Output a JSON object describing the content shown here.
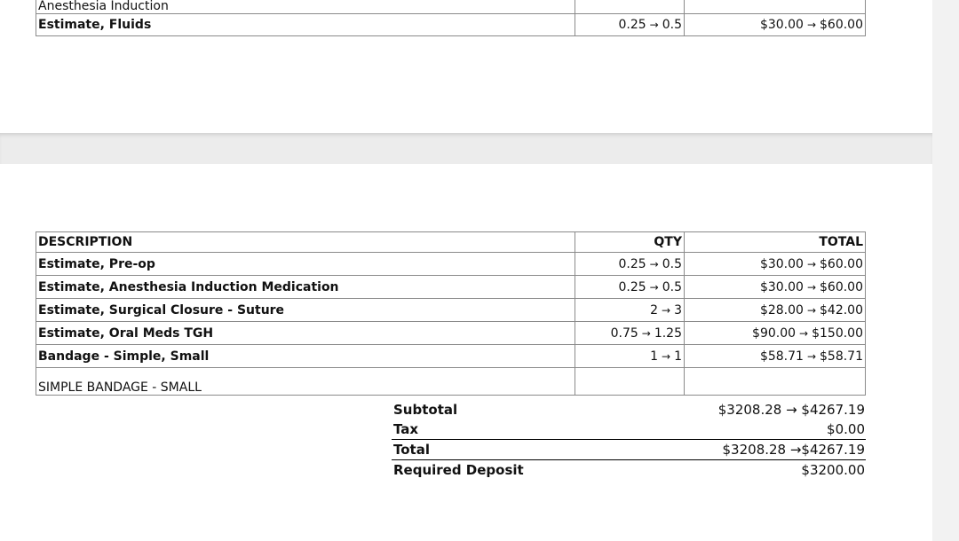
{
  "top_section": {
    "sub_line": "Anesthesia Induction",
    "row": {
      "description": "Estimate, Fluids",
      "qty_from": "0.25",
      "qty_to": "0.5",
      "total_from": "$30.00",
      "total_to": "$60.00"
    }
  },
  "table": {
    "headers": {
      "description": "DESCRIPTION",
      "qty": "QTY",
      "total": "TOTAL"
    },
    "rows": [
      {
        "description": "Estimate, Pre-op",
        "qty_from": "0.25",
        "qty_to": "0.5",
        "total_from": "$30.00",
        "total_to": "$60.00"
      },
      {
        "description": "Estimate, Anesthesia Induction Medication",
        "qty_from": "0.25",
        "qty_to": "0.5",
        "total_from": "$30.00",
        "total_to": "$60.00"
      },
      {
        "description": "Estimate, Surgical Closure - Suture",
        "qty_from": "2",
        "qty_to": "3",
        "total_from": "$28.00",
        "total_to": "$42.00"
      },
      {
        "description": "Estimate, Oral Meds TGH",
        "qty_from": "0.75",
        "qty_to": "1.25",
        "total_from": "$90.00",
        "total_to": "$150.00"
      },
      {
        "description": "Bandage - Simple, Small",
        "qty_from": "1",
        "qty_to": "1",
        "total_from": "$58.71",
        "total_to": "$58.71"
      }
    ],
    "sub_note": "SIMPLE BANDAGE - SMALL"
  },
  "summary": {
    "subtotal_label": "Subtotal",
    "subtotal_value": "$3208.28 → $4267.19",
    "tax_label": "Tax",
    "tax_value": "$0.00",
    "total_label": "Total",
    "total_value": "$3208.28 →$4267.19",
    "deposit_label": "Required Deposit",
    "deposit_value": "$3200.00"
  },
  "arrow_glyph": "→"
}
